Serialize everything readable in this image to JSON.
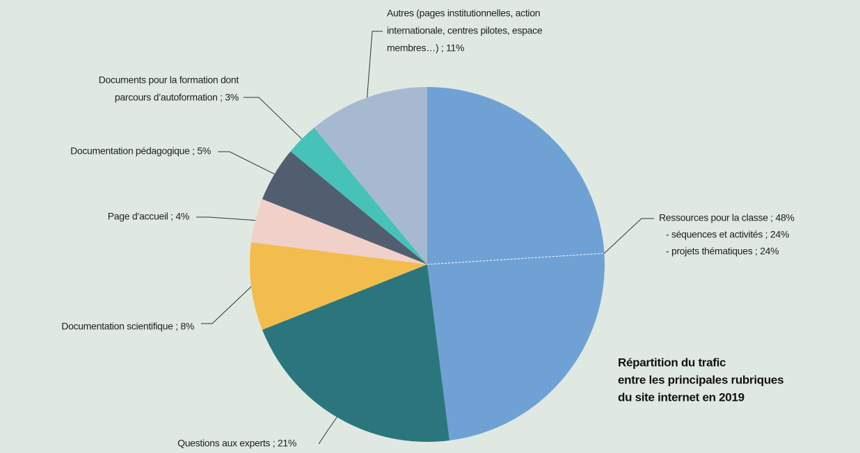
{
  "chart_data": {
    "type": "pie",
    "title": [
      "Répartition du trafic",
      "entre les principales rubriques",
      "du site internet en 2019"
    ],
    "annotation": "Ressources pour la classe ; 48%",
    "categories": [
      [
        "- séquences et activités ; 24%"
      ],
      [
        "- projets thématiques ; 24%"
      ],
      [
        "Questions aux experts ; 21%"
      ],
      [
        "Documentation scientifique ; 8%"
      ],
      [
        "Page d’accueil ; 4%"
      ],
      [
        "Documentation pédagogique ; 5%"
      ],
      [
        "Documents pour la formation dont",
        "parcours d’autoformation ; 3%"
      ],
      [
        "Autres (pages institutionnelles, action",
        "internationale, centres pilotes, espace",
        "membres…) ; 11%"
      ]
    ],
    "values": [
      24,
      24,
      21,
      8,
      4,
      5,
      3,
      11
    ],
    "colors": [
      "#6fa1d5",
      "#6fa1d5",
      "#2b767c",
      "#f2bd4d",
      "#f1d0c9",
      "#515e6f",
      "#47c2b8",
      "#a6b9d1"
    ]
  }
}
